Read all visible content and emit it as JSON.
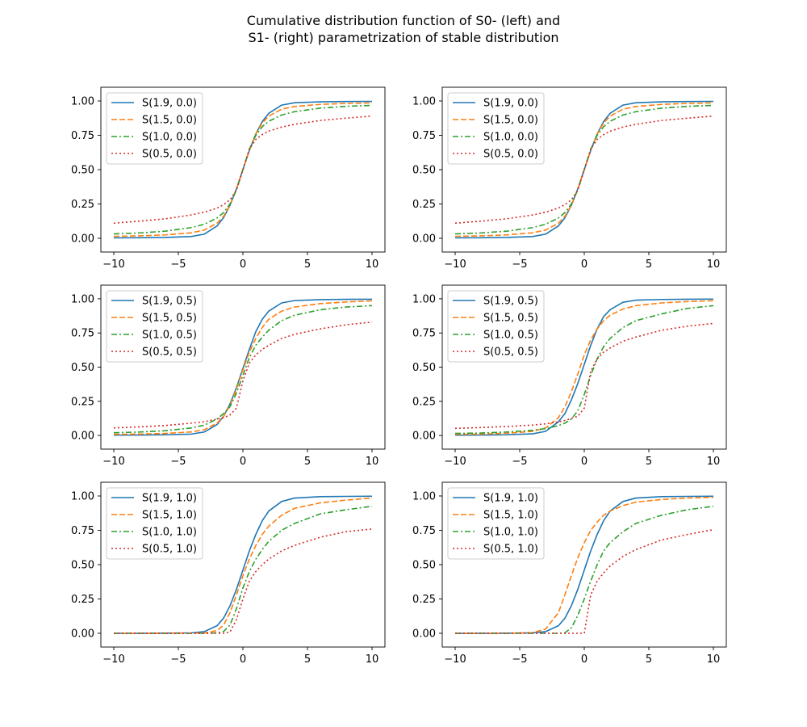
{
  "figure": {
    "title_line1": "Cumulative distribution function of S0- (left) and",
    "title_line2": "S1- (right) parametrization of stable distribution"
  },
  "styles": {
    "colors": [
      "#1f77b4",
      "#ff7f0e",
      "#2ca02c",
      "#d62728"
    ],
    "linestyles": [
      "solid",
      "dashed",
      "dashdot",
      "dotted"
    ]
  },
  "chart_data": [
    {
      "type": "line",
      "panel": "row1-left",
      "parametrization": "S0",
      "xlim": [
        -11,
        11
      ],
      "ylim": [
        -0.1,
        1.1
      ],
      "xticks": [
        -10,
        -5,
        0,
        5,
        10
      ],
      "xtick_labels": [
        "−10",
        "−5",
        "0",
        "5",
        "10"
      ],
      "yticks": [
        0,
        0.25,
        0.5,
        0.75,
        1.0
      ],
      "ytick_labels": [
        "0.00",
        "0.25",
        "0.50",
        "0.75",
        "1.00"
      ],
      "grid": false,
      "legend_position": "upper-left",
      "x": [
        -10,
        -8,
        -6,
        -4,
        -3,
        -2,
        -1.5,
        -1,
        -0.5,
        0,
        0.5,
        1,
        1.5,
        2,
        3,
        4,
        6,
        8,
        10
      ],
      "series": [
        {
          "name": "S(1.9, 0.0)",
          "values": [
            0.003,
            0.004,
            0.006,
            0.013,
            0.03,
            0.09,
            0.15,
            0.24,
            0.36,
            0.5,
            0.64,
            0.76,
            0.85,
            0.91,
            0.97,
            0.987,
            0.994,
            0.996,
            0.997
          ]
        },
        {
          "name": "S(1.5, 0.0)",
          "values": [
            0.014,
            0.018,
            0.025,
            0.04,
            0.06,
            0.11,
            0.16,
            0.24,
            0.36,
            0.5,
            0.64,
            0.76,
            0.84,
            0.89,
            0.94,
            0.96,
            0.975,
            0.982,
            0.986
          ]
        },
        {
          "name": "S(1.0, 0.0)",
          "values": [
            0.032,
            0.039,
            0.052,
            0.078,
            0.102,
            0.148,
            0.187,
            0.25,
            0.352,
            0.5,
            0.648,
            0.75,
            0.813,
            0.852,
            0.898,
            0.922,
            0.948,
            0.961,
            0.968
          ]
        },
        {
          "name": "S(0.5, 0.0)",
          "values": [
            0.11,
            0.125,
            0.142,
            0.17,
            0.19,
            0.22,
            0.245,
            0.28,
            0.35,
            0.5,
            0.65,
            0.72,
            0.755,
            0.78,
            0.81,
            0.83,
            0.858,
            0.875,
            0.89
          ]
        }
      ]
    },
    {
      "type": "line",
      "panel": "row1-right",
      "parametrization": "S1",
      "xlim": [
        -11,
        11
      ],
      "ylim": [
        -0.1,
        1.1
      ],
      "xticks": [
        -10,
        -5,
        0,
        5,
        10
      ],
      "xtick_labels": [
        "−10",
        "−5",
        "0",
        "5",
        "10"
      ],
      "yticks": [
        0,
        0.25,
        0.5,
        0.75,
        1.0
      ],
      "ytick_labels": [
        "0.00",
        "0.25",
        "0.50",
        "0.75",
        "1.00"
      ],
      "grid": false,
      "legend_position": "upper-left",
      "x": [
        -10,
        -8,
        -6,
        -4,
        -3,
        -2,
        -1.5,
        -1,
        -0.5,
        0,
        0.5,
        1,
        1.5,
        2,
        3,
        4,
        6,
        8,
        10
      ],
      "series": [
        {
          "name": "S(1.9, 0.0)",
          "values": [
            0.003,
            0.004,
            0.006,
            0.013,
            0.03,
            0.09,
            0.15,
            0.24,
            0.36,
            0.5,
            0.64,
            0.76,
            0.85,
            0.91,
            0.97,
            0.987,
            0.994,
            0.996,
            0.997
          ]
        },
        {
          "name": "S(1.5, 0.0)",
          "values": [
            0.014,
            0.018,
            0.025,
            0.04,
            0.06,
            0.11,
            0.16,
            0.24,
            0.36,
            0.5,
            0.64,
            0.76,
            0.84,
            0.89,
            0.94,
            0.96,
            0.975,
            0.982,
            0.986
          ]
        },
        {
          "name": "S(1.0, 0.0)",
          "values": [
            0.032,
            0.039,
            0.052,
            0.078,
            0.102,
            0.148,
            0.187,
            0.25,
            0.352,
            0.5,
            0.648,
            0.75,
            0.813,
            0.852,
            0.898,
            0.922,
            0.948,
            0.961,
            0.968
          ]
        },
        {
          "name": "S(0.5, 0.0)",
          "values": [
            0.11,
            0.125,
            0.142,
            0.17,
            0.19,
            0.22,
            0.245,
            0.28,
            0.35,
            0.5,
            0.65,
            0.72,
            0.755,
            0.78,
            0.81,
            0.83,
            0.858,
            0.875,
            0.89
          ]
        }
      ]
    },
    {
      "type": "line",
      "panel": "row2-left",
      "parametrization": "S0",
      "xlim": [
        -11,
        11
      ],
      "ylim": [
        -0.1,
        1.1
      ],
      "xticks": [
        -10,
        -5,
        0,
        5,
        10
      ],
      "xtick_labels": [
        "−10",
        "−5",
        "0",
        "5",
        "10"
      ],
      "yticks": [
        0,
        0.25,
        0.5,
        0.75,
        1.0
      ],
      "ytick_labels": [
        "0.00",
        "0.25",
        "0.50",
        "0.75",
        "1.00"
      ],
      "grid": false,
      "legend_position": "upper-left",
      "x": [
        -10,
        -8,
        -6,
        -4,
        -3,
        -2,
        -1.5,
        -1,
        -0.5,
        0,
        0.5,
        1,
        1.5,
        2,
        3,
        4,
        6,
        8,
        10
      ],
      "series": [
        {
          "name": "S(1.9, 0.5)",
          "values": [
            0.002,
            0.003,
            0.005,
            0.01,
            0.025,
            0.08,
            0.14,
            0.23,
            0.35,
            0.49,
            0.63,
            0.76,
            0.85,
            0.91,
            0.97,
            0.987,
            0.994,
            0.996,
            0.997
          ]
        },
        {
          "name": "S(1.5, 0.5)",
          "values": [
            0.008,
            0.01,
            0.015,
            0.026,
            0.042,
            0.09,
            0.14,
            0.22,
            0.34,
            0.48,
            0.61,
            0.71,
            0.79,
            0.85,
            0.91,
            0.94,
            0.965,
            0.977,
            0.985
          ]
        },
        {
          "name": "S(1.0, 0.5)",
          "values": [
            0.02,
            0.025,
            0.035,
            0.055,
            0.075,
            0.12,
            0.16,
            0.21,
            0.31,
            0.44,
            0.57,
            0.66,
            0.72,
            0.77,
            0.84,
            0.88,
            0.92,
            0.94,
            0.95
          ]
        },
        {
          "name": "S(0.5, 0.5)",
          "values": [
            0.055,
            0.063,
            0.073,
            0.09,
            0.1,
            0.12,
            0.13,
            0.15,
            0.2,
            0.4,
            0.53,
            0.59,
            0.63,
            0.66,
            0.71,
            0.74,
            0.78,
            0.81,
            0.83
          ]
        }
      ]
    },
    {
      "type": "line",
      "panel": "row2-right",
      "parametrization": "S1",
      "xlim": [
        -11,
        11
      ],
      "ylim": [
        -0.1,
        1.1
      ],
      "xticks": [
        -10,
        -5,
        0,
        5,
        10
      ],
      "xtick_labels": [
        "−10",
        "−5",
        "0",
        "5",
        "10"
      ],
      "yticks": [
        0,
        0.25,
        0.5,
        0.75,
        1.0
      ],
      "ytick_labels": [
        "0.00",
        "0.25",
        "0.50",
        "0.75",
        "1.00"
      ],
      "grid": false,
      "legend_position": "upper-left",
      "x": [
        -10,
        -8,
        -6,
        -4,
        -3,
        -2,
        -1.5,
        -1,
        -0.5,
        0,
        0.5,
        1,
        1.5,
        2,
        3,
        4,
        6,
        8,
        10
      ],
      "series": [
        {
          "name": "S(1.9, 0.5)",
          "values": [
            0.002,
            0.003,
            0.005,
            0.012,
            0.03,
            0.1,
            0.16,
            0.26,
            0.38,
            0.52,
            0.66,
            0.78,
            0.87,
            0.92,
            0.975,
            0.99,
            0.995,
            0.997,
            0.998
          ]
        },
        {
          "name": "S(1.5, 0.5)",
          "values": [
            0.008,
            0.01,
            0.016,
            0.03,
            0.055,
            0.13,
            0.21,
            0.32,
            0.45,
            0.59,
            0.7,
            0.78,
            0.84,
            0.88,
            0.925,
            0.95,
            0.97,
            0.98,
            0.986
          ]
        },
        {
          "name": "S(1.0, 0.5)",
          "values": [
            0.015,
            0.018,
            0.025,
            0.038,
            0.05,
            0.072,
            0.09,
            0.12,
            0.18,
            0.3,
            0.44,
            0.56,
            0.65,
            0.71,
            0.79,
            0.84,
            0.89,
            0.93,
            0.95
          ]
        },
        {
          "name": "S(0.5, 0.5)",
          "values": [
            0.052,
            0.058,
            0.065,
            0.076,
            0.085,
            0.1,
            0.11,
            0.125,
            0.14,
            0.2,
            0.47,
            0.56,
            0.61,
            0.64,
            0.69,
            0.72,
            0.77,
            0.8,
            0.82
          ]
        }
      ]
    },
    {
      "type": "line",
      "panel": "row3-left",
      "parametrization": "S0",
      "xlim": [
        -11,
        11
      ],
      "ylim": [
        -0.1,
        1.1
      ],
      "xticks": [
        -10,
        -5,
        0,
        5,
        10
      ],
      "xtick_labels": [
        "−10",
        "−5",
        "0",
        "5",
        "10"
      ],
      "yticks": [
        0,
        0.25,
        0.5,
        0.75,
        1.0
      ],
      "ytick_labels": [
        "0.00",
        "0.25",
        "0.50",
        "0.75",
        "1.00"
      ],
      "grid": false,
      "legend_position": "upper-left",
      "x": [
        -10,
        -8,
        -6,
        -4,
        -3,
        -2,
        -1.5,
        -1,
        -0.5,
        0,
        0.5,
        1,
        1.5,
        2,
        3,
        4,
        6,
        8,
        10
      ],
      "series": [
        {
          "name": "S(1.9, 1.0)",
          "values": [
            0,
            0,
            0.001,
            0.003,
            0.012,
            0.055,
            0.11,
            0.2,
            0.32,
            0.46,
            0.6,
            0.72,
            0.82,
            0.89,
            0.96,
            0.985,
            0.995,
            0.997,
            0.998
          ]
        },
        {
          "name": "S(1.5, 1.0)",
          "values": [
            0,
            0,
            0,
            0.001,
            0.002,
            0.02,
            0.06,
            0.15,
            0.28,
            0.42,
            0.54,
            0.64,
            0.72,
            0.78,
            0.86,
            0.91,
            0.95,
            0.97,
            0.985
          ]
        },
        {
          "name": "S(1.0, 1.0)",
          "values": [
            0,
            0,
            0,
            0,
            0,
            0.003,
            0.013,
            0.06,
            0.18,
            0.33,
            0.45,
            0.54,
            0.61,
            0.67,
            0.75,
            0.8,
            0.87,
            0.9,
            0.925
          ]
        },
        {
          "name": "S(0.5, 1.0)",
          "values": [
            0,
            0,
            0,
            0,
            0,
            0,
            0,
            0.01,
            0.1,
            0.25,
            0.38,
            0.45,
            0.5,
            0.54,
            0.6,
            0.64,
            0.7,
            0.74,
            0.76
          ]
        }
      ]
    },
    {
      "type": "line",
      "panel": "row3-right",
      "parametrization": "S1",
      "xlim": [
        -11,
        11
      ],
      "ylim": [
        -0.1,
        1.1
      ],
      "xticks": [
        -10,
        -5,
        0,
        5,
        10
      ],
      "xtick_labels": [
        "−10",
        "−5",
        "0",
        "5",
        "10"
      ],
      "yticks": [
        0,
        0.25,
        0.5,
        0.75,
        1.0
      ],
      "ytick_labels": [
        "0.00",
        "0.25",
        "0.50",
        "0.75",
        "1.00"
      ],
      "grid": false,
      "legend_position": "upper-left",
      "x": [
        -10,
        -8,
        -6,
        -4,
        -3,
        -2,
        -1.5,
        -1,
        -0.5,
        0,
        0.5,
        1,
        1.5,
        2,
        3,
        4,
        6,
        8,
        10
      ],
      "series": [
        {
          "name": "S(1.9, 1.0)",
          "values": [
            0,
            0,
            0.001,
            0.003,
            0.012,
            0.055,
            0.11,
            0.2,
            0.32,
            0.46,
            0.6,
            0.72,
            0.82,
            0.89,
            0.96,
            0.985,
            0.995,
            0.997,
            0.998
          ]
        },
        {
          "name": "S(1.5, 1.0)",
          "values": [
            0,
            0,
            0,
            0.005,
            0.03,
            0.15,
            0.28,
            0.42,
            0.55,
            0.66,
            0.75,
            0.81,
            0.86,
            0.89,
            0.93,
            0.955,
            0.975,
            0.985,
            0.99
          ]
        },
        {
          "name": "S(1.0, 1.0)",
          "values": [
            0,
            0,
            0,
            0,
            0,
            0,
            0.003,
            0.04,
            0.13,
            0.25,
            0.38,
            0.5,
            0.6,
            0.66,
            0.74,
            0.8,
            0.86,
            0.9,
            0.925
          ]
        },
        {
          "name": "S(0.5, 1.0)",
          "values": [
            0,
            0,
            0,
            0,
            0,
            0,
            0,
            0,
            0,
            0,
            0.28,
            0.38,
            0.44,
            0.49,
            0.56,
            0.61,
            0.68,
            0.72,
            0.755
          ]
        }
      ]
    }
  ]
}
